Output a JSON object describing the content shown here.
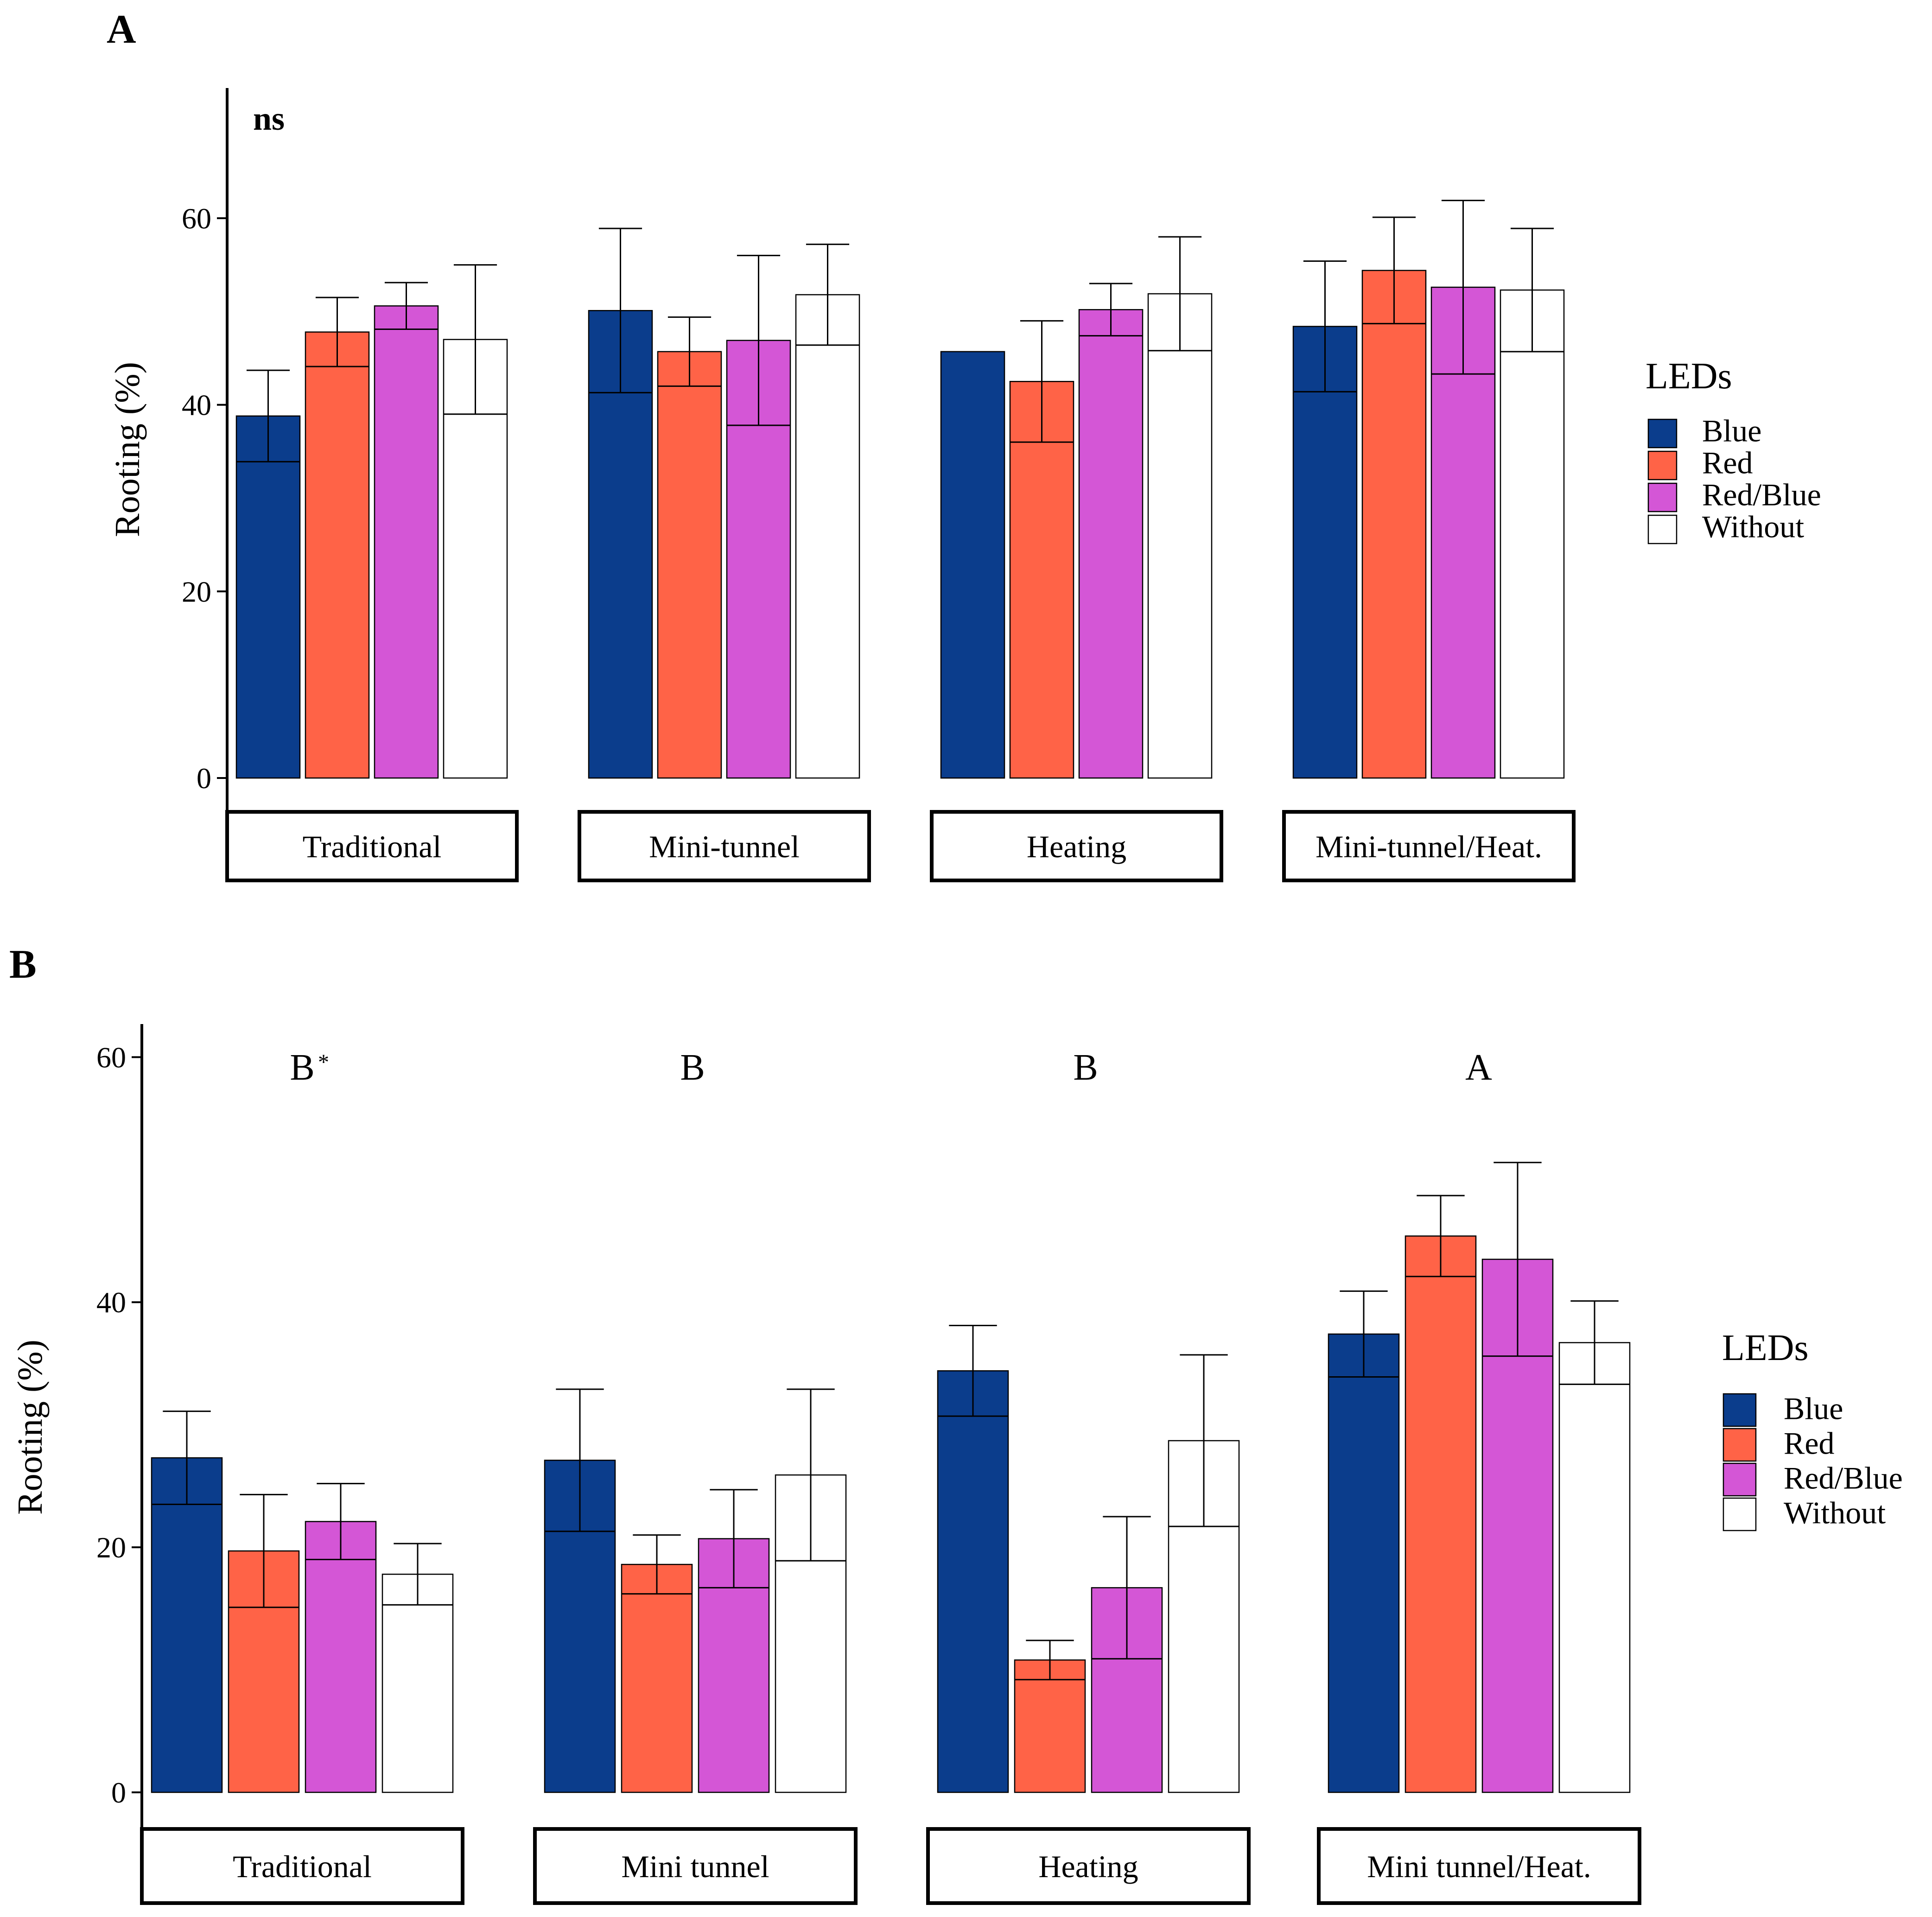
{
  "chart_data": [
    {
      "panel": "A",
      "type": "bar",
      "ylabel": "Rooting (%)",
      "ylim": [
        0,
        74
      ],
      "yticks": [
        0,
        20,
        40,
        60
      ],
      "categories": [
        "Traditional",
        "Mini-tunnel",
        "Heating",
        "Mini-tunnel/Heat."
      ],
      "annotations": [
        {
          "category": "Traditional",
          "text": "ns"
        }
      ],
      "legend": {
        "title": "LEDs",
        "position": "right"
      },
      "series": [
        {
          "name": "Blue",
          "color": "#0b3d8c",
          "values": [
            38.8,
            50.1,
            45.7,
            48.4
          ],
          "err": [
            4.9,
            8.8,
            0,
            7.0
          ]
        },
        {
          "name": "Red",
          "color": "#ff6347",
          "values": [
            47.8,
            45.7,
            42.5,
            54.4
          ],
          "err": [
            3.7,
            3.7,
            6.5,
            5.7
          ]
        },
        {
          "name": "Red/Blue",
          "color": "#d456d6",
          "values": [
            50.6,
            46.9,
            50.2,
            52.6
          ],
          "err": [
            2.5,
            9.1,
            2.8,
            9.3
          ]
        },
        {
          "name": "Without",
          "color": "#ffffff",
          "values": [
            47.0,
            51.8,
            51.9,
            52.3
          ],
          "err": [
            8.0,
            5.4,
            6.1,
            6.6
          ]
        }
      ]
    },
    {
      "panel": "B",
      "type": "bar",
      "ylabel": "Rooting (%)",
      "ylim": [
        0,
        63
      ],
      "yticks": [
        0,
        20,
        40,
        60
      ],
      "categories": [
        "Traditional",
        "Mini tunnel",
        "Heating",
        "Mini tunnel/Heat."
      ],
      "annotations": [
        {
          "category": "Traditional",
          "text": "B",
          "suffix": "*"
        },
        {
          "category": "Mini tunnel",
          "text": "B"
        },
        {
          "category": "Heating",
          "text": "B"
        },
        {
          "category": "Mini tunnel/Heat.",
          "text": "A"
        }
      ],
      "legend": {
        "title": "LEDs",
        "position": "right"
      },
      "series": [
        {
          "name": "Blue",
          "color": "#0b3d8c",
          "values": [
            27.3,
            27.1,
            34.4,
            37.4
          ],
          "err": [
            3.8,
            5.8,
            3.7,
            3.5
          ]
        },
        {
          "name": "Red",
          "color": "#ff6347",
          "values": [
            19.7,
            18.6,
            10.8,
            45.4
          ],
          "err": [
            4.6,
            2.4,
            1.6,
            3.3
          ]
        },
        {
          "name": "Red/Blue",
          "color": "#d456d6",
          "values": [
            22.1,
            20.7,
            16.7,
            43.5
          ],
          "err": [
            3.1,
            4.0,
            5.8,
            7.9
          ]
        },
        {
          "name": "Without",
          "color": "#ffffff",
          "values": [
            17.8,
            25.9,
            28.7,
            36.7
          ],
          "err": [
            2.5,
            7.0,
            7.0,
            3.4
          ]
        }
      ]
    }
  ]
}
